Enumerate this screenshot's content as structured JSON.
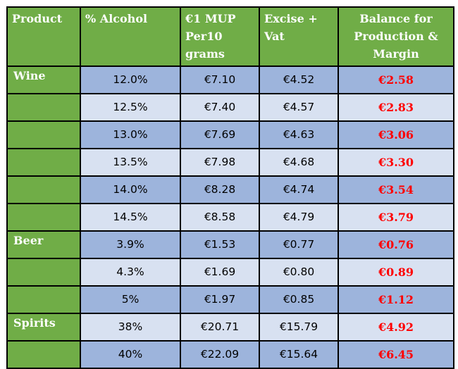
{
  "table": {
    "headers": [
      "Product",
      "% Alcohol",
      "€1 MUP Per10 grams",
      "Excise + Vat",
      "Balance for Production & Margin"
    ],
    "rows": [
      {
        "product": "Wine",
        "alcohol": "12.0%",
        "mup": "€7.10",
        "excise": "€4.52",
        "balance": "€2.58"
      },
      {
        "product": "",
        "alcohol": "12.5%",
        "mup": "€7.40",
        "excise": "€4.57",
        "balance": "€2.83"
      },
      {
        "product": "",
        "alcohol": "13.0%",
        "mup": "€7.69",
        "excise": "€4.63",
        "balance": "€3.06"
      },
      {
        "product": "",
        "alcohol": "13.5%",
        "mup": "€7.98",
        "excise": "€4.68",
        "balance": "€3.30"
      },
      {
        "product": "",
        "alcohol": "14.0%",
        "mup": "€8.28",
        "excise": "€4.74",
        "balance": "€3.54"
      },
      {
        "product": "",
        "alcohol": "14.5%",
        "mup": "€8.58",
        "excise": "€4.79",
        "balance": "€3.79"
      },
      {
        "product": "Beer",
        "alcohol": "3.9%",
        "mup": "€1.53",
        "excise": "€0.77",
        "balance": "€0.76"
      },
      {
        "product": "",
        "alcohol": "4.3%",
        "mup": "€1.69",
        "excise": "€0.80",
        "balance": "€0.89"
      },
      {
        "product": "",
        "alcohol": "5%",
        "mup": "€1.97",
        "excise": "€0.85",
        "balance": "€1.12"
      },
      {
        "product": "Spirits",
        "alcohol": "38%",
        "mup": "€20.71",
        "excise": "€15.79",
        "balance": "€4.92"
      },
      {
        "product": "",
        "alcohol": "40%",
        "mup": "€22.09",
        "excise": "€15.64",
        "balance": "€6.45"
      }
    ],
    "colors": {
      "header_green": "#70AD47",
      "row_dark_blue": "#9DB4DC",
      "row_light_blue": "#D8E1F1",
      "balance_red": "#FF0000"
    }
  }
}
